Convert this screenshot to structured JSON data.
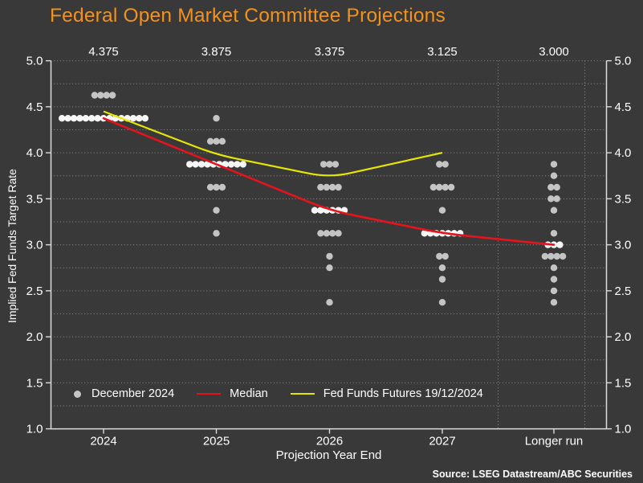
{
  "title": "Federal Open Market Committee Projections",
  "source_note": "Source: LSEG Datastream/ABC Securities",
  "colors": {
    "background": "#393939",
    "title": "#F2921E",
    "text": "#FFFFFF",
    "grid": "#A0A0A0",
    "axis": "#DCDCDC",
    "dot": "#C4C4C4",
    "dot_median": "#F8F8F8",
    "median_line": "#E5131B",
    "futures_line": "#E6E600"
  },
  "legend": {
    "items": [
      {
        "label": "December 2024",
        "marker": "gray-dot"
      },
      {
        "label": "Median",
        "marker": "red-line"
      },
      {
        "label": "Fed Funds Futures 19/12/2024",
        "marker": "yellow-line"
      }
    ]
  },
  "chart_data": {
    "type": "scatter",
    "title": "Federal Open Market Committee Projections",
    "xlabel": "Projection Year End",
    "ylabel": "Implied Fed Funds Target Rate",
    "ylim": [
      1.0,
      5.0
    ],
    "ytick_step": 0.5,
    "grid_step": 0.25,
    "grid": "dotted",
    "legend_position": "bottom-inside",
    "y_tick_labels": [
      "5.0",
      "4.5",
      "4.0",
      "3.5",
      "3.0",
      "2.5",
      "2.0",
      "1.5",
      "1.0"
    ],
    "categories": [
      "2024",
      "2025",
      "2026",
      "2027",
      "Longer run"
    ],
    "median_top_labels": [
      "4.375",
      "3.875",
      "3.375",
      "3.125",
      "3.000"
    ],
    "dot_series_name": "December 2024",
    "dots": [
      {
        "category": "2024",
        "rows": [
          {
            "value": 4.625,
            "count": 4
          },
          {
            "value": 4.375,
            "count": 15,
            "median": true
          }
        ]
      },
      {
        "category": "2025",
        "rows": [
          {
            "value": 4.375,
            "count": 1
          },
          {
            "value": 4.125,
            "count": 3
          },
          {
            "value": 3.875,
            "count": 10,
            "median": true
          },
          {
            "value": 3.625,
            "count": 3
          },
          {
            "value": 3.375,
            "count": 1
          },
          {
            "value": 3.125,
            "count": 1
          }
        ]
      },
      {
        "category": "2026",
        "rows": [
          {
            "value": 3.875,
            "count": 3
          },
          {
            "value": 3.625,
            "count": 4
          },
          {
            "value": 3.375,
            "count": 6,
            "median": true
          },
          {
            "value": 3.125,
            "count": 4
          },
          {
            "value": 2.875,
            "count": 1
          },
          {
            "value": 2.75,
            "count": 1
          },
          {
            "value": 2.375,
            "count": 1
          }
        ]
      },
      {
        "category": "2027",
        "rows": [
          {
            "value": 3.875,
            "count": 2
          },
          {
            "value": 3.625,
            "count": 4
          },
          {
            "value": 3.375,
            "count": 1
          },
          {
            "value": 3.125,
            "count": 7,
            "median": true
          },
          {
            "value": 2.875,
            "count": 2
          },
          {
            "value": 2.75,
            "count": 1
          },
          {
            "value": 2.625,
            "count": 1
          },
          {
            "value": 2.375,
            "count": 1
          }
        ]
      },
      {
        "category": "Longer run",
        "rows": [
          {
            "value": 3.875,
            "count": 1
          },
          {
            "value": 3.75,
            "count": 1
          },
          {
            "value": 3.625,
            "count": 2
          },
          {
            "value": 3.5,
            "count": 2
          },
          {
            "value": 3.375,
            "count": 1
          },
          {
            "value": 3.125,
            "count": 1
          },
          {
            "value": 3.0,
            "count": 3,
            "median": true
          },
          {
            "value": 2.875,
            "count": 4
          },
          {
            "value": 2.75,
            "count": 1
          },
          {
            "value": 2.625,
            "count": 1
          },
          {
            "value": 2.5,
            "count": 1
          },
          {
            "value": 2.375,
            "count": 1
          }
        ]
      }
    ],
    "series": [
      {
        "name": "Median",
        "color": "#E5131B",
        "categories": [
          "2024",
          "2025",
          "2026",
          "2027",
          "Longer run"
        ],
        "values": [
          4.375,
          3.875,
          3.375,
          3.125,
          3.0
        ]
      },
      {
        "name": "Fed Funds Futures 19/12/2024",
        "color": "#E6E600",
        "categories": [
          "2024",
          "2025",
          "2026",
          "2027"
        ],
        "values": [
          4.45,
          3.98,
          3.73,
          4.0
        ]
      }
    ]
  }
}
